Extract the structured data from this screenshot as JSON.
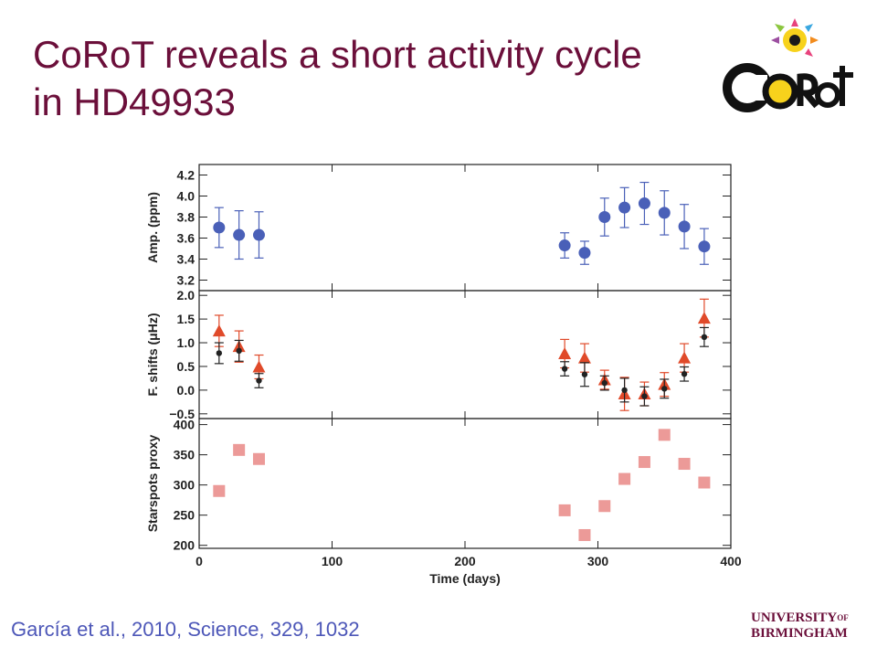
{
  "slide": {
    "title": "CoRoT reveals a short activity cycle in HD49933",
    "citation": "García et al., 2010, Science, 329, 1032",
    "logo_label": "CoRoT",
    "university": {
      "line1": "UNIVERSITY",
      "of": "OF",
      "line2": "BIRMINGHAM"
    },
    "title_color": "#6b0f3a",
    "citation_color": "#4d57b8"
  },
  "chart_data": [
    {
      "type": "scatter",
      "ylabel": "Amp. (ppm)",
      "xlim": [
        0,
        400
      ],
      "ylim": [
        3.1,
        4.3
      ],
      "yticks": [
        3.2,
        3.4,
        3.6,
        3.8,
        4.0,
        4.2
      ],
      "grid": false,
      "series": [
        {
          "marker": "circle",
          "color": "#4a60b8",
          "points": [
            {
              "x": 15,
              "y": 3.7,
              "err": 0.19
            },
            {
              "x": 30,
              "y": 3.63,
              "err": 0.23
            },
            {
              "x": 45,
              "y": 3.63,
              "err": 0.22
            },
            {
              "x": 275,
              "y": 3.53,
              "err": 0.12
            },
            {
              "x": 290,
              "y": 3.46,
              "err": 0.11
            },
            {
              "x": 305,
              "y": 3.8,
              "err": 0.18
            },
            {
              "x": 320,
              "y": 3.89,
              "err": 0.19
            },
            {
              "x": 335,
              "y": 3.93,
              "err": 0.2
            },
            {
              "x": 350,
              "y": 3.84,
              "err": 0.21
            },
            {
              "x": 365,
              "y": 3.71,
              "err": 0.21
            },
            {
              "x": 380,
              "y": 3.52,
              "err": 0.17
            }
          ]
        }
      ]
    },
    {
      "type": "scatter",
      "ylabel": "F. shifts (μHz)",
      "xlim": [
        0,
        400
      ],
      "ylim": [
        -0.6,
        2.1
      ],
      "yticks": [
        -0.5,
        0.0,
        0.5,
        1.0,
        1.5,
        2.0
      ],
      "yticklabels": [
        "−0.5",
        "0.0",
        "0.5",
        "1.0",
        "1.5",
        "2.0"
      ],
      "grid": false,
      "series": [
        {
          "marker": "triangle",
          "color": "#e04a2a",
          "points": [
            {
              "x": 15,
              "y": 1.25,
              "err": 0.33
            },
            {
              "x": 30,
              "y": 0.92,
              "err": 0.33
            },
            {
              "x": 45,
              "y": 0.49,
              "err": 0.25
            },
            {
              "x": 275,
              "y": 0.77,
              "err": 0.3
            },
            {
              "x": 290,
              "y": 0.68,
              "err": 0.3
            },
            {
              "x": 305,
              "y": 0.22,
              "err": 0.2
            },
            {
              "x": 320,
              "y": -0.08,
              "err": 0.35
            },
            {
              "x": 335,
              "y": -0.08,
              "err": 0.25
            },
            {
              "x": 350,
              "y": 0.12,
              "err": 0.25
            },
            {
              "x": 365,
              "y": 0.68,
              "err": 0.3
            },
            {
              "x": 380,
              "y": 1.52,
              "err": 0.4
            }
          ]
        },
        {
          "marker": "dot",
          "color": "#222222",
          "points": [
            {
              "x": 15,
              "y": 0.78,
              "err": 0.22
            },
            {
              "x": 30,
              "y": 0.83,
              "err": 0.22
            },
            {
              "x": 45,
              "y": 0.2,
              "err": 0.15
            },
            {
              "x": 275,
              "y": 0.45,
              "err": 0.15
            },
            {
              "x": 290,
              "y": 0.33,
              "err": 0.25
            },
            {
              "x": 305,
              "y": 0.15,
              "err": 0.15
            },
            {
              "x": 320,
              "y": 0.0,
              "err": 0.25
            },
            {
              "x": 335,
              "y": -0.13,
              "err": 0.2
            },
            {
              "x": 350,
              "y": 0.03,
              "err": 0.2
            },
            {
              "x": 365,
              "y": 0.34,
              "err": 0.15
            },
            {
              "x": 380,
              "y": 1.12,
              "err": 0.2
            }
          ]
        }
      ]
    },
    {
      "type": "scatter",
      "ylabel": "Starspots proxy",
      "xlabel": "Time (days)",
      "xlim": [
        0,
        400
      ],
      "xticks": [
        0,
        100,
        200,
        300,
        400
      ],
      "ylim": [
        195,
        410
      ],
      "yticks": [
        200,
        250,
        300,
        350,
        400
      ],
      "grid": false,
      "series": [
        {
          "marker": "square",
          "color": "#ec9a98",
          "points": [
            {
              "x": 15,
              "y": 290
            },
            {
              "x": 30,
              "y": 358
            },
            {
              "x": 45,
              "y": 343
            },
            {
              "x": 275,
              "y": 258
            },
            {
              "x": 290,
              "y": 217
            },
            {
              "x": 305,
              "y": 265
            },
            {
              "x": 320,
              "y": 310
            },
            {
              "x": 335,
              "y": 338
            },
            {
              "x": 350,
              "y": 383
            },
            {
              "x": 365,
              "y": 335
            },
            {
              "x": 380,
              "y": 304
            }
          ]
        }
      ]
    }
  ]
}
